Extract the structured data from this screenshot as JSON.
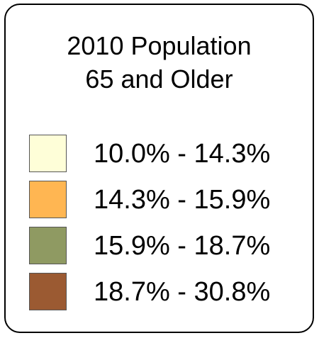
{
  "legend": {
    "title_line1": "2010 Population",
    "title_line2": "65 and Older",
    "items": [
      {
        "label": "10.0% - 14.3%",
        "color": "#fefed8"
      },
      {
        "label": "14.3% - 15.9%",
        "color": "#ffb652"
      },
      {
        "label": "15.9% - 18.7%",
        "color": "#8f9a62"
      },
      {
        "label": "18.7% - 30.8%",
        "color": "#9b5a32"
      }
    ]
  }
}
